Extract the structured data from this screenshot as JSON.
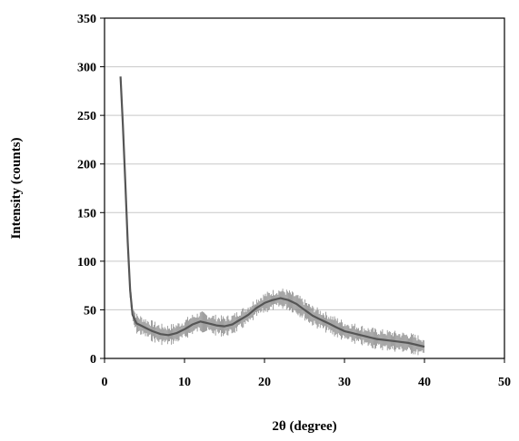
{
  "chart_data": {
    "type": "line",
    "title": "",
    "xlabel": "2θ (degree)",
    "ylabel": "Intensity (counts)",
    "xlim": [
      0,
      50
    ],
    "ylim": [
      0,
      350
    ],
    "xticks": [
      "0",
      "10",
      "20",
      "30",
      "40",
      "50"
    ],
    "yticks": [
      "0",
      "50",
      "100",
      "150",
      "200",
      "250",
      "300",
      "350"
    ],
    "grid": {
      "horizontal": true,
      "vertical": false
    },
    "legend": "none",
    "series": [
      {
        "color": "#555555",
        "x": [
          2.0,
          2.3,
          2.6,
          2.9,
          3.2,
          3.5,
          4.0,
          5.0,
          6.0,
          7.0,
          8.0,
          9.0,
          10.0,
          11.0,
          12.0,
          13.0,
          14.0,
          15.0,
          16.0,
          17.0,
          18.0,
          19.0,
          20.0,
          21.0,
          22.0,
          23.0,
          24.0,
          25.0,
          26.0,
          27.0,
          28.0,
          29.0,
          30.0,
          31.0,
          32.0,
          33.0,
          34.0,
          35.0,
          36.0,
          37.0,
          38.0,
          39.0,
          40.0
        ],
        "y": [
          290,
          240,
          180,
          120,
          70,
          45,
          36,
          32,
          28,
          25,
          24,
          26,
          30,
          35,
          38,
          36,
          34,
          33,
          35,
          40,
          45,
          52,
          57,
          60,
          62,
          60,
          56,
          50,
          44,
          40,
          36,
          32,
          28,
          26,
          24,
          22,
          20,
          19,
          18,
          17,
          16,
          14,
          12
        ]
      }
    ]
  }
}
